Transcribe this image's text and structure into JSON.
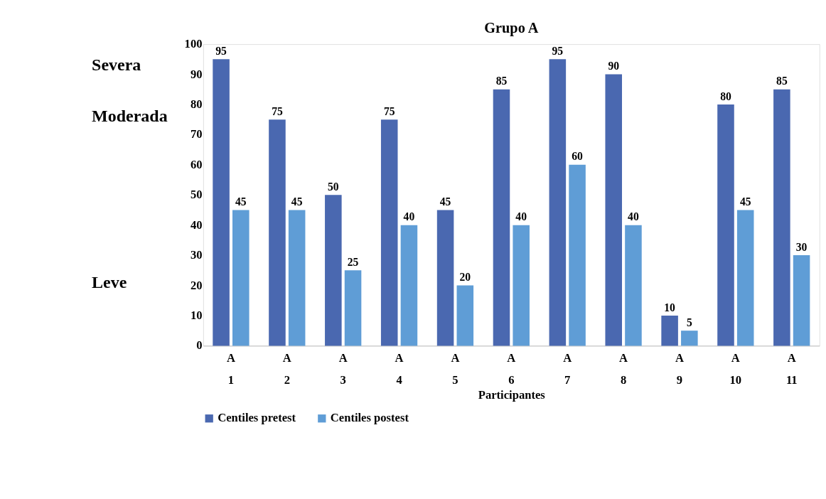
{
  "chart_data": {
    "type": "bar",
    "title": "Grupo A",
    "xlabel": "Participantes",
    "categories": [
      "A 1",
      "A 2",
      "A 3",
      "A 4",
      "A 5",
      "A 6",
      "A 7",
      "A 8",
      "A 9",
      "A 10",
      "A 11"
    ],
    "series": [
      {
        "name": "Centiles pretest",
        "color": "#4a68b0",
        "values": [
          95,
          75,
          50,
          75,
          45,
          85,
          95,
          90,
          10,
          80,
          85
        ]
      },
      {
        "name": "Centiles postest",
        "color": "#5f9dd6",
        "values": [
          45,
          45,
          25,
          40,
          20,
          40,
          60,
          40,
          5,
          45,
          30
        ]
      }
    ],
    "ylim": [
      0,
      100
    ],
    "yticks": [
      0,
      10,
      20,
      30,
      40,
      50,
      60,
      70,
      80,
      90,
      100
    ],
    "annotations": [
      "Severa",
      "Moderada",
      "Leve"
    ],
    "data_labels": true,
    "grid": false,
    "legend": "bottom"
  }
}
